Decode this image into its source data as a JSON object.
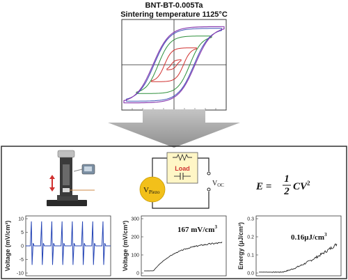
{
  "header": {
    "title": "BNT-BT-0.005Ta",
    "subtitle": "Sintering temperature 1125°C"
  },
  "circuit": {
    "source_label": "V",
    "source_sub": "Piezo",
    "load_label": "Load",
    "output_label": "V",
    "output_sub": "OC"
  },
  "equation": {
    "lhs": "E =",
    "num": "1",
    "den": "2",
    "rhs": "CV",
    "exp": "2"
  },
  "colors": {
    "loop_red": "#d0302f",
    "loop_green": "#2c8f3a",
    "loop_blue": "#3f53b8",
    "loop_purple": "#8a3cb0",
    "plot_blue": "#2343b5",
    "source_yellow": "#f2c01a",
    "load_box": "#fff6c6",
    "arrow_gray": "#aaaaaa"
  },
  "chart_data": [
    {
      "type": "line",
      "name": "hysteresis",
      "title": "",
      "grid": "crosshair at origin",
      "loops_emax": [
        0.14,
        0.45,
        0.75,
        0.95,
        1.0
      ],
      "loops_pmax": [
        0.12,
        0.4,
        0.68,
        0.86,
        0.9
      ]
    },
    {
      "type": "line",
      "name": "voltage-pulses",
      "ylabel": "Voltage (mV/cm³)",
      "ylim": [
        -10,
        10
      ],
      "yticks": [
        "10",
        "5",
        "0",
        "-5",
        "-10"
      ],
      "pulse_count": 8,
      "pulse_peak": 9,
      "pulse_trough": -7
    },
    {
      "type": "line",
      "name": "charging-voltage",
      "ylabel": "Voltage (mV/cm³)",
      "ylim": [
        0,
        300
      ],
      "yticks": [
        "300",
        "200",
        "100",
        "0"
      ],
      "annotation": "167 mV/cm",
      "annotation_exp": "3",
      "final_value": 167
    },
    {
      "type": "line",
      "name": "stored-energy",
      "ylabel": "Energy (μJ/cm³)",
      "ylim": [
        0,
        0.3
      ],
      "yticks": [
        "0.3",
        "0.2",
        "0.1",
        "0.0"
      ],
      "annotation": "0.16μJ/cm",
      "annotation_exp": "3",
      "final_value": 0.16
    }
  ]
}
